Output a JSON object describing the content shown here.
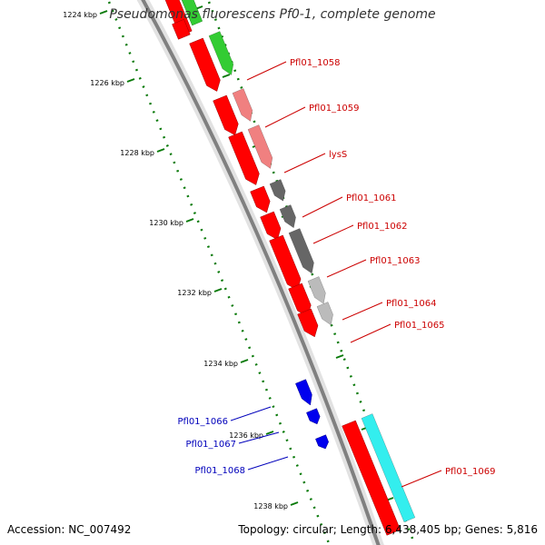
{
  "title": "Pseudomonas fluorescens Pf0-1, complete genome",
  "accession": "Accession: NC_007492",
  "topology": "Topology: circular; Length: 6,438,405 bp; Genes: 5,816",
  "colors": {
    "backbone": "#808080",
    "tick": "#0a7a0a",
    "forward_label": "#cc0000",
    "reverse_label": "#0000bb",
    "cds_forward": "#ff0000",
    "cds_reverse": "#0000ee"
  },
  "kbp_labels": [
    "1224 kbp",
    "1226 kbp",
    "1228 kbp",
    "1230 kbp",
    "1232 kbp",
    "1234 kbp",
    "1236 kbp",
    "1238 kbp"
  ],
  "forward_genes": [
    {
      "name": "Pfl01_1058",
      "cog_color": "#33cc33"
    },
    {
      "name": "Pfl01_1059",
      "cog_color": "#f08080"
    },
    {
      "name": "lysS",
      "cog_color": "#f08080"
    },
    {
      "name": "Pfl01_1061",
      "cog_color": "#666666"
    },
    {
      "name": "Pfl01_1062",
      "cog_color": "#666666"
    },
    {
      "name": "Pfl01_1063",
      "cog_color": "#666666"
    },
    {
      "name": "Pfl01_1064",
      "cog_color": "#bbbbbb"
    },
    {
      "name": "Pfl01_1065",
      "cog_color": "#bbbbbb"
    },
    {
      "name": "Pfl01_1069",
      "cog_color": "#33eeee"
    }
  ],
  "reverse_genes": [
    {
      "name": "Pfl01_1066"
    },
    {
      "name": "Pfl01_1067"
    },
    {
      "name": "Pfl01_1068"
    }
  ]
}
